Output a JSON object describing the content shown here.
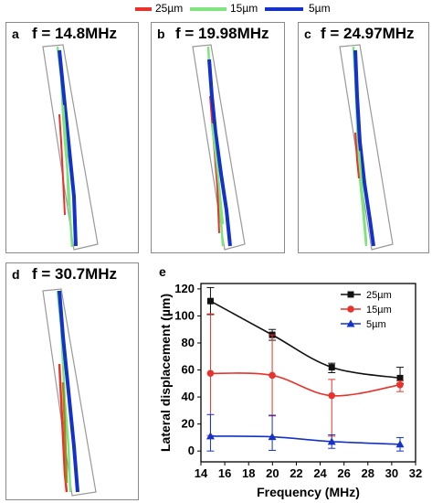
{
  "colors": {
    "red": "#e8322c",
    "green": "#7fe37f",
    "blue": "#1432c8",
    "black": "#111111"
  },
  "top_legend": [
    {
      "label": "25µm",
      "color": "#e8322c"
    },
    {
      "label": "15µm",
      "color": "#7fe37f"
    },
    {
      "label": "5µm",
      "color": "#1432c8"
    }
  ],
  "panels": [
    {
      "letter": "a",
      "frequency_label": "f = 14.8MHz"
    },
    {
      "letter": "b",
      "frequency_label": "f = 19.98MHz"
    },
    {
      "letter": "c",
      "frequency_label": "f = 24.97MHz"
    },
    {
      "letter": "d",
      "frequency_label": "f = 30.7MHz"
    }
  ],
  "chart_data": {
    "panel_letter": "e",
    "type": "line",
    "xlabel": "Frequency (MHz)",
    "ylabel": "Lateral displacement (µm)",
    "xlim": [
      14,
      32
    ],
    "ylim": [
      -8,
      124
    ],
    "xticks": [
      14,
      16,
      18,
      20,
      22,
      24,
      26,
      28,
      30,
      32
    ],
    "yticks": [
      0,
      20,
      40,
      60,
      80,
      100,
      120
    ],
    "legend_position": "top-right",
    "x": [
      14.8,
      19.98,
      24.97,
      30.7
    ],
    "series": [
      {
        "name": "25µm",
        "color": "#111111",
        "marker": "square",
        "values": [
          111,
          86,
          62,
          54
        ],
        "err_low": [
          10,
          4,
          4,
          4
        ],
        "err_high": [
          10,
          4,
          3,
          8
        ]
      },
      {
        "name": "15µm",
        "color": "#e8322c",
        "marker": "circle",
        "values": [
          57.5,
          56,
          41,
          49
        ],
        "err_low": [
          46,
          30,
          30,
          5
        ],
        "err_high": [
          44,
          30,
          12,
          3
        ]
      },
      {
        "name": "5µm",
        "color": "#1432c8",
        "marker": "triangle",
        "values": [
          11,
          10.5,
          7,
          5
        ],
        "err_low": [
          11,
          10,
          5,
          5
        ],
        "err_high": [
          16,
          16,
          5,
          5
        ]
      }
    ]
  }
}
